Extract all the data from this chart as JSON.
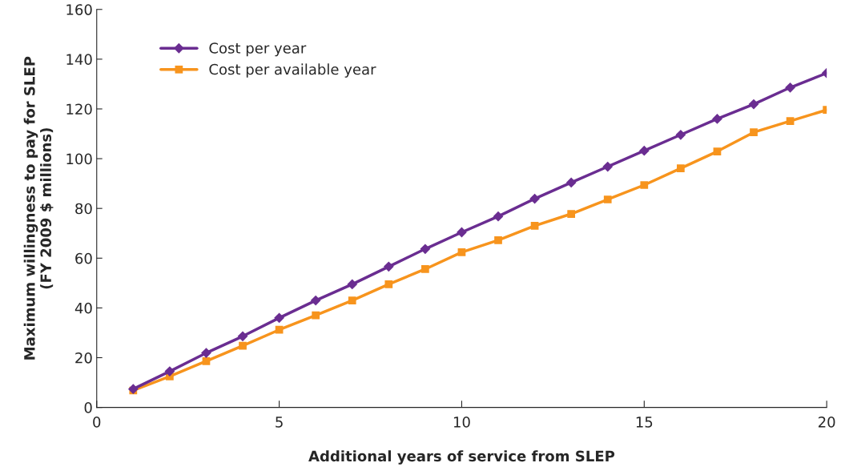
{
  "chart_data": {
    "type": "line",
    "xlabel": "Additional years of service from SLEP",
    "ylabel": "Maximum willingness to pay for SLEP\n(FY 2009 $ millions)",
    "x": [
      1,
      2,
      3,
      4,
      5,
      6,
      7,
      8,
      9,
      10,
      11,
      12,
      13,
      14,
      15,
      16,
      17,
      18,
      19,
      20
    ],
    "series": [
      {
        "name": "Cost per year",
        "color": "#6a2d91",
        "marker": "diamond",
        "values": [
          7.4,
          14.5,
          21.9,
          28.6,
          36,
          43,
          49.5,
          56.6,
          63.7,
          70.4,
          76.8,
          83.9,
          90.4,
          96.8,
          103.2,
          109.6,
          116,
          121.9,
          128.6,
          134.4
        ]
      },
      {
        "name": "Cost per available year",
        "color": "#f7941d",
        "marker": "square",
        "values": [
          6.8,
          12.5,
          18.6,
          24.8,
          31.2,
          37,
          43,
          49.5,
          55.6,
          62.4,
          67.2,
          73,
          77.8,
          83.6,
          89.4,
          96.1,
          102.9,
          110.6,
          115.1,
          119.6
        ]
      }
    ],
    "xlim": [
      0,
      20
    ],
    "xticks": [
      0,
      5,
      10,
      15,
      20
    ],
    "ylim": [
      0,
      160
    ],
    "yticks": [
      0,
      20,
      40,
      60,
      80,
      100,
      120,
      140,
      160
    ],
    "grid": false,
    "legend": "top left",
    "line_style": "solid"
  }
}
